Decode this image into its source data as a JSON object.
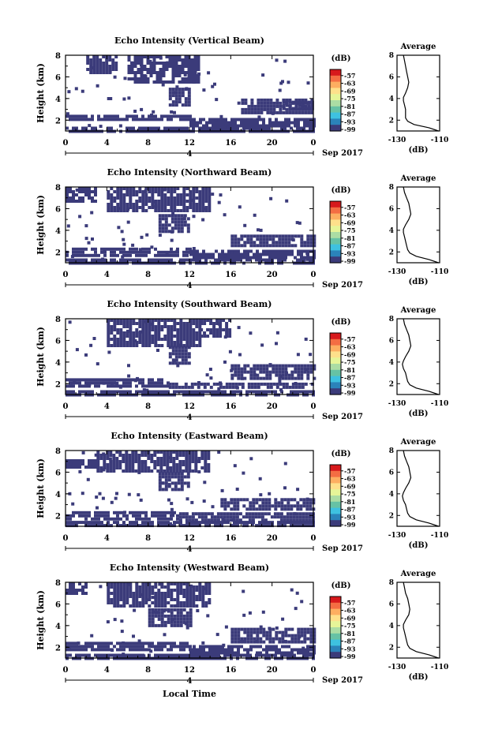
{
  "chart_data": [
    {
      "type": "heatmap",
      "title": "Echo Intensity (Vertical Beam)",
      "ylabel": "Height (km)",
      "xticks": [
        "0",
        "4",
        "8",
        "12",
        "16",
        "20",
        "0"
      ],
      "yticks": [
        "2",
        "4",
        "6",
        "8"
      ],
      "xlim": [
        0,
        24
      ],
      "ylim": [
        1,
        8
      ],
      "day_label": "4",
      "month_label": "Sep 2017",
      "colorbar": {
        "unit": "(dB)",
        "labels": [
          "-57",
          "-63",
          "-69",
          "-75",
          "-81",
          "-87",
          "-93",
          "-99"
        ]
      },
      "average": {
        "title": "Average",
        "xlabel": "(dB)",
        "xticks": [
          "-130",
          "-110"
        ],
        "yticks": [
          "2",
          "4",
          "6",
          "8"
        ],
        "xlim": [
          -130,
          -110
        ],
        "ylim": [
          1,
          8
        ],
        "profile": [
          [
            -110.5,
            1.0
          ],
          [
            -115,
            1.3
          ],
          [
            -122,
            1.6
          ],
          [
            -125,
            1.9
          ],
          [
            -126,
            2.2
          ],
          [
            -126,
            2.6
          ],
          [
            -126,
            3.0
          ],
          [
            -126.5,
            3.4
          ],
          [
            -127,
            3.8
          ],
          [
            -127,
            4.1
          ],
          [
            -126,
            4.5
          ],
          [
            -125,
            5.0
          ],
          [
            -124.5,
            5.5
          ],
          [
            -125,
            6.0
          ],
          [
            -125.5,
            6.5
          ],
          [
            -126,
            7.0
          ],
          [
            -126.5,
            7.5
          ],
          [
            -127,
            8.0
          ]
        ]
      },
      "echo_layers": [
        {
          "x": [
            0,
            24
          ],
          "y": [
            1.0,
            1.4
          ]
        },
        {
          "x": [
            0,
            12
          ],
          "y": [
            2.0,
            2.5
          ]
        },
        {
          "x": [
            12,
            24
          ],
          "y": [
            1.6,
            2.2
          ]
        },
        {
          "x": [
            17,
            24
          ],
          "y": [
            2.6,
            4.0
          ]
        },
        {
          "x": [
            6,
            13
          ],
          "y": [
            5.6,
            8.0
          ]
        },
        {
          "x": [
            2,
            5
          ],
          "y": [
            6.5,
            8.0
          ]
        },
        {
          "x": [
            10,
            12
          ],
          "y": [
            3.5,
            5.0
          ]
        },
        {
          "x": [
            21,
            24
          ],
          "y": [
            3.0,
            3.8
          ]
        }
      ]
    },
    {
      "type": "heatmap",
      "title": "Echo Intensity (Northward Beam)",
      "ylabel": "Height (km)",
      "xticks": [
        "0",
        "4",
        "8",
        "12",
        "16",
        "20",
        "0"
      ],
      "yticks": [
        "2",
        "4",
        "6",
        "8"
      ],
      "xlim": [
        0,
        24
      ],
      "ylim": [
        1,
        8
      ],
      "day_label": "4",
      "month_label": "Sep 2017",
      "colorbar": {
        "unit": "(dB)",
        "labels": [
          "-57",
          "-63",
          "-69",
          "-75",
          "-81",
          "-87",
          "-93",
          "-99"
        ]
      },
      "average": {
        "title": "Average",
        "xlabel": "(dB)",
        "xticks": [
          "-130",
          "-110"
        ],
        "yticks": [
          "2",
          "4",
          "6",
          "8"
        ],
        "xlim": [
          -130,
          -110
        ],
        "ylim": [
          1,
          8
        ],
        "profile": [
          [
            -110.5,
            1.0
          ],
          [
            -115,
            1.3
          ],
          [
            -121,
            1.6
          ],
          [
            -124,
            1.9
          ],
          [
            -125,
            2.2
          ],
          [
            -125.5,
            2.6
          ],
          [
            -126,
            3.0
          ],
          [
            -126.5,
            3.4
          ],
          [
            -127,
            3.8
          ],
          [
            -127,
            4.1
          ],
          [
            -126,
            4.5
          ],
          [
            -124.5,
            5.0
          ],
          [
            -123.5,
            5.5
          ],
          [
            -124,
            6.0
          ],
          [
            -124.5,
            6.5
          ],
          [
            -125.5,
            7.0
          ],
          [
            -126.5,
            7.5
          ],
          [
            -127,
            8.0
          ]
        ]
      },
      "echo_layers": [
        {
          "x": [
            0,
            24
          ],
          "y": [
            1.0,
            1.4
          ]
        },
        {
          "x": [
            0,
            12
          ],
          "y": [
            1.8,
            2.4
          ]
        },
        {
          "x": [
            12,
            24
          ],
          "y": [
            1.6,
            2.2
          ]
        },
        {
          "x": [
            16,
            24
          ],
          "y": [
            2.6,
            3.6
          ]
        },
        {
          "x": [
            4,
            14
          ],
          "y": [
            5.8,
            8.0
          ]
        },
        {
          "x": [
            0,
            3
          ],
          "y": [
            6.8,
            8.0
          ]
        },
        {
          "x": [
            9,
            12
          ],
          "y": [
            3.8,
            5.5
          ]
        }
      ]
    },
    {
      "type": "heatmap",
      "title": "Echo Intensity (Southward Beam)",
      "ylabel": "Height (km)",
      "xticks": [
        "0",
        "4",
        "8",
        "12",
        "16",
        "20",
        "0"
      ],
      "yticks": [
        "2",
        "4",
        "6",
        "8"
      ],
      "xlim": [
        0,
        24
      ],
      "ylim": [
        1,
        8
      ],
      "day_label": "4",
      "month_label": "Sep 2017",
      "colorbar": {
        "unit": "(dB)",
        "labels": [
          "-57",
          "-63",
          "-69",
          "-75",
          "-81",
          "-87",
          "-93",
          "-99"
        ]
      },
      "average": {
        "title": "Average",
        "xlabel": "(dB)",
        "xticks": [
          "-130",
          "-110"
        ],
        "yticks": [
          "2",
          "4",
          "6",
          "8"
        ],
        "xlim": [
          -130,
          -110
        ],
        "ylim": [
          1,
          8
        ],
        "profile": [
          [
            -110.5,
            1.0
          ],
          [
            -115,
            1.3
          ],
          [
            -121,
            1.6
          ],
          [
            -124,
            1.9
          ],
          [
            -125,
            2.2
          ],
          [
            -125.5,
            2.6
          ],
          [
            -126,
            3.0
          ],
          [
            -127,
            3.4
          ],
          [
            -127.5,
            3.8
          ],
          [
            -127,
            4.1
          ],
          [
            -126,
            4.5
          ],
          [
            -124.5,
            5.0
          ],
          [
            -123.5,
            5.5
          ],
          [
            -124,
            6.0
          ],
          [
            -124.5,
            6.5
          ],
          [
            -125.5,
            7.0
          ],
          [
            -126.5,
            7.5
          ],
          [
            -127,
            8.0
          ]
        ]
      },
      "echo_layers": [
        {
          "x": [
            0,
            24
          ],
          "y": [
            1.0,
            1.4
          ]
        },
        {
          "x": [
            0,
            10
          ],
          "y": [
            1.9,
            2.5
          ]
        },
        {
          "x": [
            10,
            24
          ],
          "y": [
            1.6,
            2.1
          ]
        },
        {
          "x": [
            16,
            24
          ],
          "y": [
            2.6,
            3.8
          ]
        },
        {
          "x": [
            4,
            13
          ],
          "y": [
            5.6,
            8.0
          ]
        },
        {
          "x": [
            13,
            16
          ],
          "y": [
            6.5,
            8.0
          ]
        },
        {
          "x": [
            10,
            12
          ],
          "y": [
            4.0,
            5.5
          ]
        }
      ]
    },
    {
      "type": "heatmap",
      "title": "Echo Intensity (Eastward Beam)",
      "ylabel": "Height (km)",
      "xticks": [
        "0",
        "4",
        "8",
        "12",
        "16",
        "20",
        "0"
      ],
      "yticks": [
        "2",
        "4",
        "6",
        "8"
      ],
      "xlim": [
        0,
        24
      ],
      "ylim": [
        1,
        8
      ],
      "day_label": "4",
      "month_label": "Sep 2017",
      "colorbar": {
        "unit": "(dB)",
        "labels": [
          "-57",
          "-63",
          "-69",
          "-75",
          "-81",
          "-87",
          "-93",
          "-99"
        ]
      },
      "average": {
        "title": "Average",
        "xlabel": "(dB)",
        "xticks": [
          "-130",
          "-110"
        ],
        "yticks": [
          "2",
          "4",
          "6",
          "8"
        ],
        "xlim": [
          -130,
          -110
        ],
        "ylim": [
          1,
          8
        ],
        "profile": [
          [
            -110.5,
            1.0
          ],
          [
            -115,
            1.3
          ],
          [
            -121,
            1.6
          ],
          [
            -124,
            1.9
          ],
          [
            -125,
            2.2
          ],
          [
            -125.5,
            2.6
          ],
          [
            -126,
            3.0
          ],
          [
            -127,
            3.4
          ],
          [
            -127.5,
            3.8
          ],
          [
            -127,
            4.1
          ],
          [
            -126,
            4.5
          ],
          [
            -124.5,
            5.0
          ],
          [
            -123.5,
            5.5
          ],
          [
            -124,
            6.0
          ],
          [
            -124.5,
            6.5
          ],
          [
            -125.5,
            7.0
          ],
          [
            -126.5,
            7.5
          ],
          [
            -127,
            8.0
          ]
        ]
      },
      "echo_layers": [
        {
          "x": [
            0,
            24
          ],
          "y": [
            1.0,
            1.5
          ]
        },
        {
          "x": [
            0,
            11
          ],
          "y": [
            1.8,
            2.4
          ]
        },
        {
          "x": [
            11,
            24
          ],
          "y": [
            1.7,
            2.3
          ]
        },
        {
          "x": [
            15,
            24
          ],
          "y": [
            2.6,
            3.6
          ]
        },
        {
          "x": [
            3,
            14
          ],
          "y": [
            6.0,
            8.0
          ]
        },
        {
          "x": [
            0,
            3
          ],
          "y": [
            6.5,
            7.2
          ]
        },
        {
          "x": [
            9,
            12
          ],
          "y": [
            4.5,
            6.0
          ]
        }
      ]
    },
    {
      "type": "heatmap",
      "title": "Echo Intensity (Westward Beam)",
      "ylabel": "Height (km)",
      "xlabel": "Local Time",
      "xticks": [
        "0",
        "4",
        "8",
        "12",
        "16",
        "20",
        "0"
      ],
      "yticks": [
        "2",
        "4",
        "6",
        "8"
      ],
      "xlim": [
        0,
        24
      ],
      "ylim": [
        1,
        8
      ],
      "day_label": "4",
      "month_label": "Sep 2017",
      "colorbar": {
        "unit": "(dB)",
        "labels": [
          "-57",
          "-63",
          "-69",
          "-75",
          "-81",
          "-87",
          "-93",
          "-99"
        ]
      },
      "average": {
        "title": "Average",
        "xlabel": "(dB)",
        "xticks": [
          "-130",
          "-110"
        ],
        "yticks": [
          "2",
          "4",
          "6",
          "8"
        ],
        "xlim": [
          -130,
          -110
        ],
        "ylim": [
          1,
          8
        ],
        "profile": [
          [
            -110.5,
            1.0
          ],
          [
            -115,
            1.3
          ],
          [
            -121,
            1.6
          ],
          [
            -124,
            1.9
          ],
          [
            -125,
            2.2
          ],
          [
            -125.5,
            2.6
          ],
          [
            -126,
            3.0
          ],
          [
            -126.5,
            3.4
          ],
          [
            -127,
            3.8
          ],
          [
            -127,
            4.1
          ],
          [
            -126,
            4.5
          ],
          [
            -124.5,
            5.0
          ],
          [
            -124,
            5.5
          ],
          [
            -124.5,
            6.0
          ],
          [
            -125,
            6.5
          ],
          [
            -126,
            7.0
          ],
          [
            -126.5,
            7.5
          ],
          [
            -127,
            8.0
          ]
        ]
      },
      "echo_layers": [
        {
          "x": [
            0,
            24
          ],
          "y": [
            1.0,
            1.4
          ]
        },
        {
          "x": [
            0,
            12
          ],
          "y": [
            1.9,
            2.5
          ]
        },
        {
          "x": [
            12,
            24
          ],
          "y": [
            1.6,
            2.2
          ]
        },
        {
          "x": [
            16,
            24
          ],
          "y": [
            2.6,
            3.8
          ]
        },
        {
          "x": [
            4,
            14
          ],
          "y": [
            5.8,
            8.0
          ]
        },
        {
          "x": [
            0,
            2
          ],
          "y": [
            7.0,
            8.0
          ]
        },
        {
          "x": [
            8,
            12
          ],
          "y": [
            4.0,
            5.6
          ]
        }
      ]
    }
  ],
  "colors": {
    "echo": "#3b3b7a",
    "scale": [
      "#d7191c",
      "#f46d43",
      "#fdae61",
      "#fee08b",
      "#e6f598",
      "#abdda4",
      "#66c2a5",
      "#3ec1e0",
      "#2b83ba",
      "#3b3b7a"
    ]
  }
}
